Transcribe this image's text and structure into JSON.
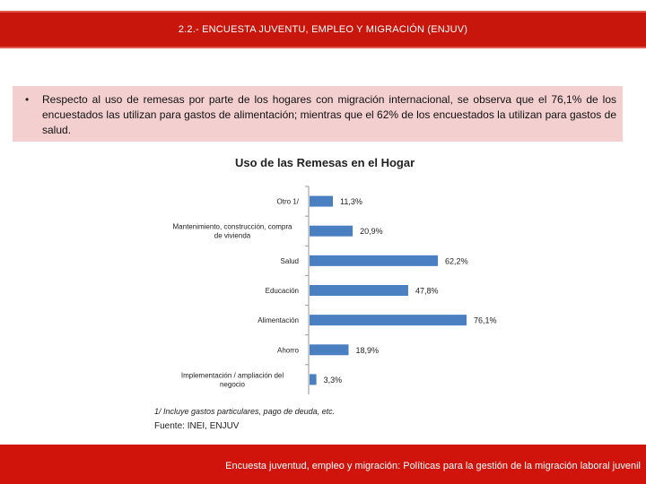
{
  "header": {
    "title": "2.2.- ENCUESTA JUVENTU, EMPLEO Y MIGRACIÓN (ENJUV)"
  },
  "note": {
    "bullet": "•",
    "text": "Respecto al uso de remesas por parte de los hogares con migración internacional, se observa que el 76,1% de los encuestados las utilizan para gastos de alimentación; mientras que el 62% de los encuestados la utilizan para gastos de salud."
  },
  "chart_data": {
    "type": "bar",
    "orientation": "horizontal",
    "title": "Uso de las Remesas en el Hogar",
    "categories": [
      [
        "Otro 1/"
      ],
      [
        "Mantenimiento, construcción, compra",
        "de vivienda"
      ],
      [
        "Salud"
      ],
      [
        "Educación"
      ],
      [
        "Alimentación"
      ],
      [
        "Ahorro"
      ],
      [
        "Implementación / ampliación del",
        "negocio"
      ]
    ],
    "values": [
      11.3,
      20.9,
      62.2,
      47.8,
      76.1,
      18.9,
      3.3
    ],
    "value_labels": [
      "11,3%",
      "20,9%",
      "62,2%",
      "47,8%",
      "76,1%",
      "18,9%",
      "3,3%"
    ],
    "xlim": [
      0,
      80
    ],
    "bar_color": "#4a7fc1",
    "grid": false
  },
  "footnote": "1/ Incluye gastos particulares, pago de deuda, etc.",
  "source": "Fuente: INEI, ENJUV",
  "footer": {
    "text": "Encuesta juventud, empleo y migración: Políticas para la gestión de la migración laboral juvenil"
  }
}
